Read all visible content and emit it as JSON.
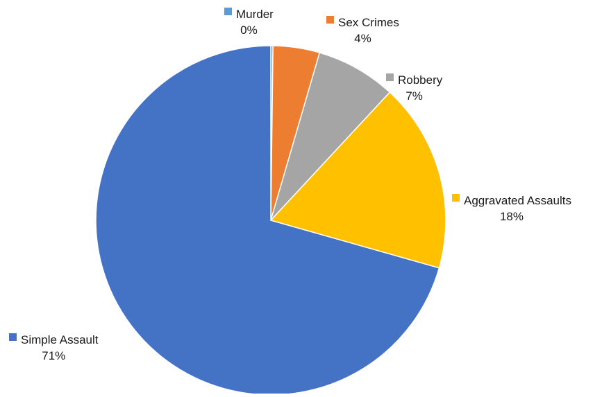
{
  "chart_data": {
    "type": "pie",
    "title": "",
    "slices": [
      {
        "label": "Murder",
        "value": 0.2,
        "percent_label": "0%",
        "color": "#5B9BD5"
      },
      {
        "label": "Sex Crimes",
        "value": 4.3,
        "percent_label": "4%",
        "color": "#ED7D31"
      },
      {
        "label": "Robbery",
        "value": 7.4,
        "percent_label": "7%",
        "color": "#A5A5A5"
      },
      {
        "label": "Aggravated Assaults",
        "value": 17.5,
        "percent_label": "18%",
        "color": "#FFC000"
      },
      {
        "label": "Simple Assault",
        "value": 70.6,
        "percent_label": "71%",
        "color": "#4472C4"
      }
    ],
    "start_angle": "12 o'clock",
    "direction": "clockwise",
    "legend": "none",
    "labels": "outside, category name and percent"
  }
}
